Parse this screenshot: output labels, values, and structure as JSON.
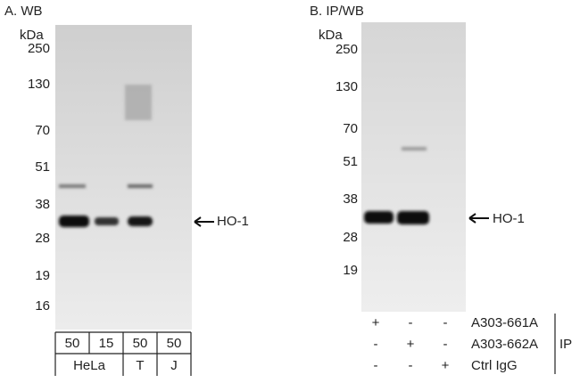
{
  "panel_a": {
    "title": "A. WB",
    "unit": "kDa",
    "markers": [
      "250",
      "130",
      "70",
      "51",
      "38",
      "28",
      "19",
      "16"
    ],
    "loads": [
      "50",
      "15",
      "50",
      "50"
    ],
    "samples": [
      "HeLa",
      "T",
      "J"
    ],
    "target": "HO-1"
  },
  "panel_b": {
    "title": "B. IP/WB",
    "unit": "kDa",
    "markers": [
      "250",
      "130",
      "70",
      "51",
      "38",
      "28",
      "19"
    ],
    "target": "HO-1",
    "ip_rows": [
      {
        "marks": [
          "+",
          "-",
          "-"
        ],
        "label": "A303-661A"
      },
      {
        "marks": [
          "-",
          "+",
          "-"
        ],
        "label": "A303-662A"
      },
      {
        "marks": [
          "-",
          "-",
          "+"
        ],
        "label": "Ctrl IgG"
      }
    ],
    "ip_label": "IP"
  }
}
